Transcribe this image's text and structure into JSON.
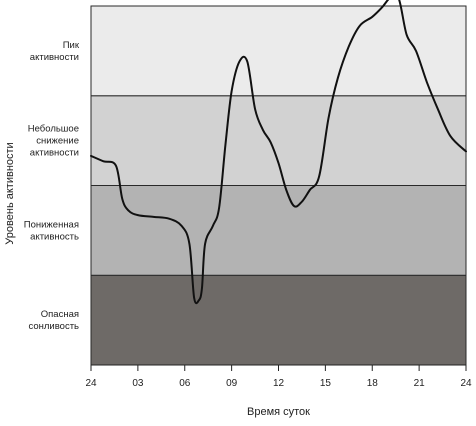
{
  "chart_data": {
    "type": "line",
    "title": "",
    "xlabel": "Время суток",
    "ylabel": "Уровень активности",
    "xlim": [
      0,
      24
    ],
    "ylim": [
      0,
      4
    ],
    "grid": false,
    "x_ticks": [
      {
        "value": 0,
        "label": "24"
      },
      {
        "value": 3,
        "label": "03"
      },
      {
        "value": 6,
        "label": "06"
      },
      {
        "value": 9,
        "label": "09"
      },
      {
        "value": 12,
        "label": "12"
      },
      {
        "value": 15,
        "label": "15"
      },
      {
        "value": 18,
        "label": "18"
      },
      {
        "value": 21,
        "label": "21"
      },
      {
        "value": 24,
        "label": "24"
      }
    ],
    "bands": [
      {
        "from": 0,
        "to": 1,
        "lines": [
          "Опасная",
          "сонливость"
        ],
        "color": "#6e6a67"
      },
      {
        "from": 1,
        "to": 2,
        "lines": [
          "Пониженная",
          "активность"
        ],
        "color": "#b3b3b3"
      },
      {
        "from": 2,
        "to": 3,
        "lines": [
          "Небольшое",
          "снижение",
          "активности"
        ],
        "color": "#d2d2d2"
      },
      {
        "from": 3,
        "to": 4,
        "lines": [
          "Пик",
          "активности"
        ],
        "color": "#ebebeb"
      }
    ],
    "series": [
      {
        "color": "#111111",
        "points": [
          [
            0.0,
            2.33
          ],
          [
            0.8,
            2.27
          ],
          [
            1.6,
            2.22
          ],
          [
            2.0,
            1.85
          ],
          [
            2.4,
            1.72
          ],
          [
            3.0,
            1.67
          ],
          [
            4.0,
            1.65
          ],
          [
            5.0,
            1.63
          ],
          [
            5.8,
            1.55
          ],
          [
            6.3,
            1.35
          ],
          [
            6.6,
            0.75
          ],
          [
            6.9,
            0.72
          ],
          [
            7.1,
            0.85
          ],
          [
            7.3,
            1.35
          ],
          [
            7.8,
            1.55
          ],
          [
            8.2,
            1.75
          ],
          [
            8.6,
            2.45
          ],
          [
            9.0,
            3.05
          ],
          [
            9.5,
            3.38
          ],
          [
            10.0,
            3.38
          ],
          [
            10.5,
            2.85
          ],
          [
            11.0,
            2.62
          ],
          [
            11.5,
            2.48
          ],
          [
            12.0,
            2.25
          ],
          [
            12.5,
            1.95
          ],
          [
            13.0,
            1.77
          ],
          [
            13.5,
            1.82
          ],
          [
            14.0,
            1.95
          ],
          [
            14.6,
            2.1
          ],
          [
            15.2,
            2.75
          ],
          [
            15.8,
            3.2
          ],
          [
            16.5,
            3.55
          ],
          [
            17.2,
            3.78
          ],
          [
            18.0,
            3.88
          ],
          [
            18.6,
            3.98
          ],
          [
            19.2,
            4.1
          ],
          [
            19.7,
            4.08
          ],
          [
            20.2,
            3.68
          ],
          [
            20.8,
            3.5
          ],
          [
            21.5,
            3.15
          ],
          [
            22.2,
            2.85
          ],
          [
            23.0,
            2.55
          ],
          [
            24.0,
            2.38
          ]
        ]
      }
    ]
  }
}
